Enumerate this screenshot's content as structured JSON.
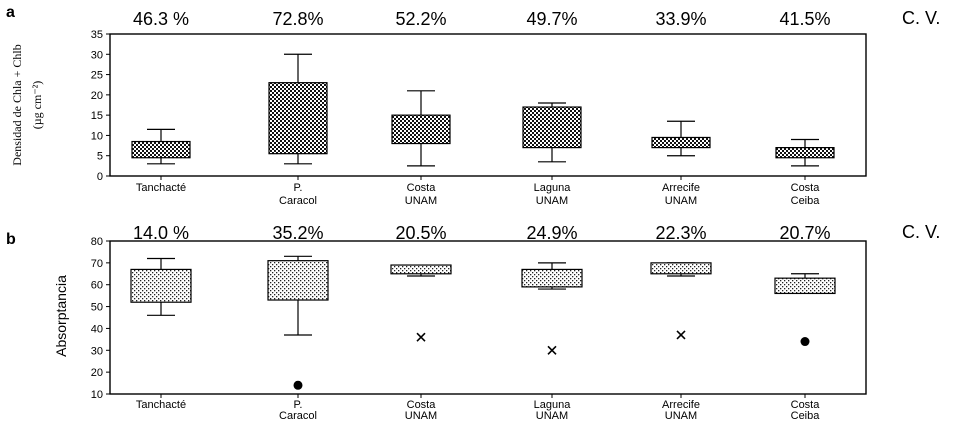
{
  "chart_data": [
    {
      "panel": "a",
      "type": "box",
      "ylabel_line1": "Densidad de Chla + Chlb",
      "ylabel_line2": "(µg cm⁻²)",
      "ylim": [
        0,
        35
      ],
      "yticks": [
        "0",
        "5",
        "10",
        "15",
        "20",
        "25",
        "30",
        "35"
      ],
      "cv_label": "C. V.",
      "pattern": "dense",
      "categories": [
        {
          "line1": "Tanchacté",
          "line2": "",
          "cv": "46.3 %",
          "whisker_low": 3.0,
          "q1": 4.5,
          "q3": 8.5,
          "whisker_high": 11.5
        },
        {
          "line1": "P.",
          "line2": "Caracol",
          "cv": "72.8%",
          "whisker_low": 3.0,
          "q1": 5.5,
          "q3": 23.0,
          "whisker_high": 30.0
        },
        {
          "line1": "Costa",
          "line2": "UNAM",
          "cv": "52.2%",
          "whisker_low": 2.5,
          "q1": 8.0,
          "q3": 15.0,
          "whisker_high": 21.0
        },
        {
          "line1": "Laguna",
          "line2": "UNAM",
          "cv": "49.7%",
          "whisker_low": 3.5,
          "q1": 7.0,
          "q3": 17.0,
          "whisker_high": 18.0
        },
        {
          "line1": "Arrecife",
          "line2": "UNAM",
          "cv": "33.9%",
          "whisker_low": 5.0,
          "q1": 7.0,
          "q3": 9.5,
          "whisker_high": 13.5
        },
        {
          "line1": "Costa",
          "line2": "Ceiba",
          "cv": "41.5%",
          "whisker_low": 2.5,
          "q1": 4.5,
          "q3": 7.0,
          "whisker_high": 9.0
        }
      ]
    },
    {
      "panel": "b",
      "type": "box",
      "ylabel_line1": "Absorptancia",
      "ylim": [
        10,
        80
      ],
      "yticks": [
        "10",
        "20",
        "30",
        "40",
        "50",
        "60",
        "70",
        "80"
      ],
      "cv_label": "C. V.",
      "pattern": "light",
      "categories": [
        {
          "line1": "Tanchacté",
          "line2": "",
          "cv": "14.0 %",
          "whisker_low": 46,
          "q1": 52,
          "q3": 67,
          "whisker_high": 72,
          "outlier": null,
          "outlier_marker": ""
        },
        {
          "line1": "P.",
          "line2": "Caracol",
          "cv": "35.2%",
          "whisker_low": 37,
          "q1": 53,
          "q3": 71,
          "whisker_high": 73,
          "outlier": 14,
          "outlier_marker": "dot"
        },
        {
          "line1": "Costa",
          "line2": "UNAM",
          "cv": "20.5%",
          "whisker_low": 64,
          "q1": 65,
          "q3": 69,
          "whisker_high": 69,
          "outlier": 36,
          "outlier_marker": "x"
        },
        {
          "line1": "Laguna",
          "line2": "UNAM",
          "cv": "24.9%",
          "whisker_low": 58,
          "q1": 59,
          "q3": 67,
          "whisker_high": 70,
          "outlier": 30,
          "outlier_marker": "x"
        },
        {
          "line1": "Arrecife",
          "line2": "UNAM",
          "cv": "22.3%",
          "whisker_low": 64,
          "q1": 65,
          "q3": 70,
          "whisker_high": 70,
          "outlier": 37,
          "outlier_marker": "x"
        },
        {
          "line1": "Costa",
          "line2": "Ceiba",
          "cv": "20.7%",
          "whisker_low": 56,
          "q1": 56,
          "q3": 63,
          "whisker_high": 65,
          "outlier": 34,
          "outlier_marker": "dot"
        }
      ]
    }
  ]
}
